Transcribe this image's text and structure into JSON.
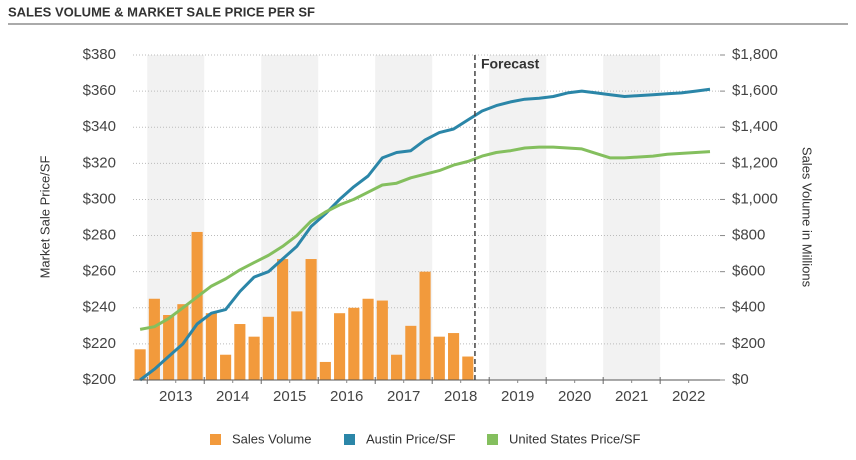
{
  "chart_data": {
    "type": "combo",
    "title": "SALES VOLUME & MARKET SALE PRICE PER SF",
    "y_label": "Market Sale Price/SF",
    "y2_label": "Sales Volume in Millions",
    "legend": "bottom",
    "grid": true,
    "annotation": {
      "text": "Forecast",
      "x": 2018.75
    },
    "x": [
      2012.875,
      2013.125,
      2013.375,
      2013.625,
      2013.875,
      2014.125,
      2014.375,
      2014.625,
      2014.875,
      2015.125,
      2015.375,
      2015.625,
      2015.875,
      2016.125,
      2016.375,
      2016.625,
      2016.875,
      2017.125,
      2017.375,
      2017.625,
      2017.875,
      2018.125,
      2018.375,
      2018.625,
      2018.875,
      2019.125,
      2019.375,
      2019.625,
      2019.875,
      2020.125,
      2020.375,
      2020.625,
      2020.875,
      2021.125,
      2021.375,
      2021.625,
      2021.875,
      2022.125,
      2022.375,
      2022.625,
      2022.875
    ],
    "xlim": [
      2012.75,
      2023.05
    ],
    "xticks": [
      {
        "value": 2013.5,
        "label": "2013"
      },
      {
        "value": 2014.5,
        "label": "2014"
      },
      {
        "value": 2015.5,
        "label": "2015"
      },
      {
        "value": 2016.5,
        "label": "2016"
      },
      {
        "value": 2017.5,
        "label": "2017"
      },
      {
        "value": 2018.5,
        "label": "2018"
      },
      {
        "value": 2019.5,
        "label": "2019"
      },
      {
        "value": 2020.5,
        "label": "2020"
      },
      {
        "value": 2021.5,
        "label": "2021"
      },
      {
        "value": 2022.5,
        "label": "2022"
      }
    ],
    "ylim": [
      200,
      380
    ],
    "yticks": [
      {
        "value": 200,
        "label": "$200"
      },
      {
        "value": 220,
        "label": "$220"
      },
      {
        "value": 240,
        "label": "$240"
      },
      {
        "value": 260,
        "label": "$260"
      },
      {
        "value": 280,
        "label": "$280"
      },
      {
        "value": 300,
        "label": "$300"
      },
      {
        "value": 320,
        "label": "$320"
      },
      {
        "value": 340,
        "label": "$340"
      },
      {
        "value": 360,
        "label": "$360"
      },
      {
        "value": 380,
        "label": "$380"
      }
    ],
    "y2lim": [
      0,
      1800
    ],
    "y2ticks": [
      {
        "value": 0,
        "label": "$0"
      },
      {
        "value": 200,
        "label": "$200"
      },
      {
        "value": 400,
        "label": "$400"
      },
      {
        "value": 600,
        "label": "$600"
      },
      {
        "value": 800,
        "label": "$800"
      },
      {
        "value": 1000,
        "label": "$1,000"
      },
      {
        "value": 1200,
        "label": "$1,200"
      },
      {
        "value": 1400,
        "label": "$1,400"
      },
      {
        "value": 1600,
        "label": "$1,600"
      },
      {
        "value": 1800,
        "label": "$1,800"
      }
    ],
    "series": [
      {
        "name": "Sales Volume",
        "type": "bar",
        "axis": "y2",
        "color": "#f29a3c",
        "values": [
          170,
          450,
          360,
          420,
          820,
          370,
          140,
          310,
          240,
          350,
          670,
          380,
          670,
          100,
          370,
          400,
          450,
          440,
          140,
          300,
          600,
          240,
          260,
          130,
          null,
          null,
          null,
          null,
          null,
          null,
          null,
          null,
          null,
          null,
          null,
          null,
          null,
          null,
          null,
          null,
          null
        ]
      },
      {
        "name": "Austin Price/SF",
        "type": "line",
        "color": "#2b86a8",
        "values": [
          200,
          206,
          213,
          220,
          231,
          237,
          239,
          249,
          257,
          260,
          267,
          274,
          285,
          292,
          300,
          307,
          313,
          323,
          326,
          327,
          333,
          337,
          339,
          344,
          349,
          352,
          354,
          355.5,
          356,
          357,
          359,
          360,
          359,
          358,
          357,
          357.5,
          358,
          358.5,
          359,
          360,
          361
        ]
      },
      {
        "name": "United States Price/SF",
        "type": "line",
        "color": "#84bf5e",
        "values": [
          228,
          229.5,
          234,
          240,
          246,
          252,
          256,
          261,
          265,
          269,
          274,
          280,
          288,
          293,
          297,
          300,
          304,
          308,
          309,
          312,
          314,
          316,
          319,
          321,
          324,
          326,
          327,
          328.5,
          329,
          329,
          328.5,
          328,
          325.5,
          323,
          323,
          323.5,
          324,
          325,
          325.5,
          326,
          326.5
        ]
      }
    ]
  }
}
